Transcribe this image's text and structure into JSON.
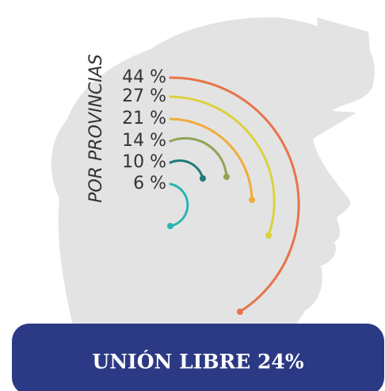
{
  "chart_data": {
    "type": "arc",
    "title": "UNIÓN LIBRE 24%",
    "y_label": "POR PROVINCIAS",
    "values": [
      44,
      27,
      21,
      14,
      10,
      6
    ],
    "value_labels": [
      "44 %",
      "27 %",
      "21 %",
      "14 %",
      "10 %",
      "6 %"
    ],
    "colors": [
      "#e8734a",
      "#dcd13e",
      "#f0ad3a",
      "#8fa455",
      "#1f7a78",
      "#2bb5b0"
    ],
    "banner_color": "#2c3a85"
  }
}
